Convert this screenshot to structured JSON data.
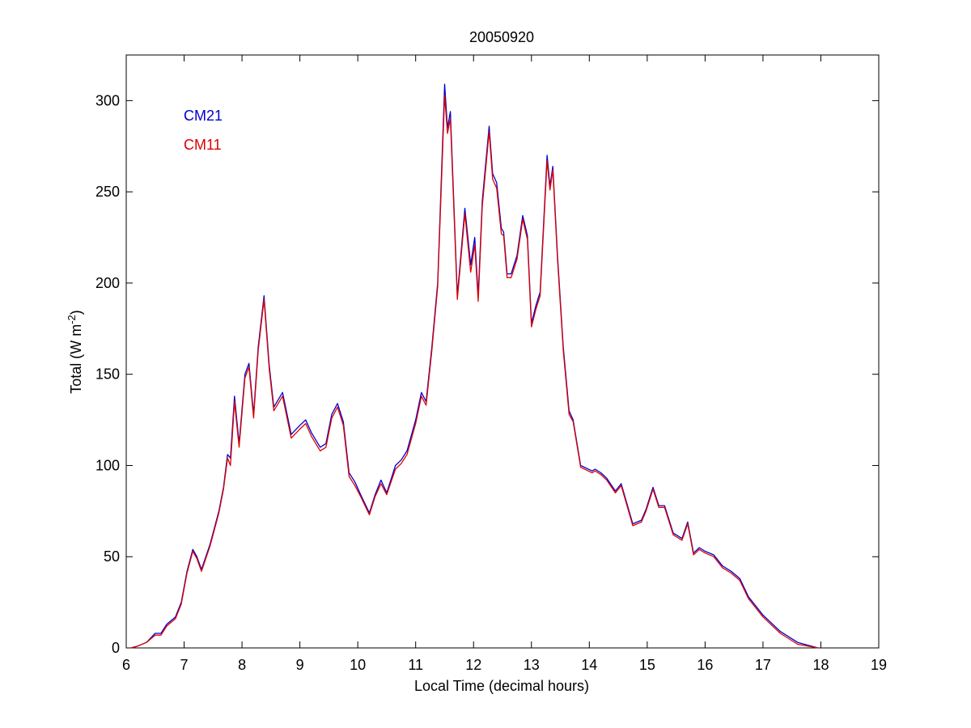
{
  "chart_data": {
    "type": "line",
    "title": "20050920",
    "xlabel": "Local Time (decimal hours)",
    "ylabel": "Total (W m",
    "ylabel_unit_sup": "-2",
    "ylabel_close": ")",
    "xlim": [
      6,
      19
    ],
    "ylim": [
      0,
      325
    ],
    "xticks": [
      6,
      7,
      8,
      9,
      10,
      11,
      12,
      13,
      14,
      15,
      16,
      17,
      18,
      19
    ],
    "yticks": [
      0,
      50,
      100,
      150,
      200,
      250,
      300
    ],
    "grid": false,
    "legend_position": "top-left",
    "series": [
      {
        "name": "CM21",
        "color": "#0000cc",
        "points": [
          [
            6.08,
            0
          ],
          [
            6.2,
            1
          ],
          [
            6.35,
            3
          ],
          [
            6.5,
            8
          ],
          [
            6.6,
            8
          ],
          [
            6.7,
            13
          ],
          [
            6.85,
            17
          ],
          [
            6.95,
            25
          ],
          [
            7.05,
            42
          ],
          [
            7.15,
            54
          ],
          [
            7.22,
            50
          ],
          [
            7.3,
            43
          ],
          [
            7.45,
            57
          ],
          [
            7.6,
            75
          ],
          [
            7.68,
            88
          ],
          [
            7.75,
            106
          ],
          [
            7.8,
            104
          ],
          [
            7.87,
            138
          ],
          [
            7.95,
            112
          ],
          [
            8.05,
            150
          ],
          [
            8.12,
            156
          ],
          [
            8.2,
            128
          ],
          [
            8.28,
            165
          ],
          [
            8.38,
            193
          ],
          [
            8.47,
            155
          ],
          [
            8.55,
            132
          ],
          [
            8.7,
            140
          ],
          [
            8.85,
            117
          ],
          [
            9.0,
            122
          ],
          [
            9.1,
            125
          ],
          [
            9.2,
            118
          ],
          [
            9.35,
            110
          ],
          [
            9.45,
            112
          ],
          [
            9.55,
            128
          ],
          [
            9.65,
            134
          ],
          [
            9.75,
            124
          ],
          [
            9.85,
            96
          ],
          [
            9.95,
            91
          ],
          [
            10.05,
            84
          ],
          [
            10.2,
            74
          ],
          [
            10.3,
            84
          ],
          [
            10.4,
            92
          ],
          [
            10.5,
            85
          ],
          [
            10.65,
            100
          ],
          [
            10.75,
            103
          ],
          [
            10.85,
            108
          ],
          [
            11.0,
            125
          ],
          [
            11.1,
            140
          ],
          [
            11.18,
            135
          ],
          [
            11.28,
            165
          ],
          [
            11.38,
            200
          ],
          [
            11.5,
            309
          ],
          [
            11.55,
            285
          ],
          [
            11.6,
            294
          ],
          [
            11.72,
            193
          ],
          [
            11.85,
            241
          ],
          [
            11.95,
            210
          ],
          [
            12.02,
            225
          ],
          [
            12.08,
            193
          ],
          [
            12.15,
            245
          ],
          [
            12.27,
            286
          ],
          [
            12.33,
            260
          ],
          [
            12.4,
            255
          ],
          [
            12.48,
            230
          ],
          [
            12.52,
            228
          ],
          [
            12.58,
            205
          ],
          [
            12.65,
            205
          ],
          [
            12.75,
            215
          ],
          [
            12.85,
            237
          ],
          [
            12.93,
            226
          ],
          [
            13.0,
            178
          ],
          [
            13.08,
            188
          ],
          [
            13.15,
            195
          ],
          [
            13.27,
            270
          ],
          [
            13.32,
            253
          ],
          [
            13.37,
            264
          ],
          [
            13.45,
            215
          ],
          [
            13.55,
            165
          ],
          [
            13.65,
            130
          ],
          [
            13.72,
            125
          ],
          [
            13.85,
            100
          ],
          [
            14.05,
            97
          ],
          [
            14.1,
            98
          ],
          [
            14.2,
            96
          ],
          [
            14.3,
            93
          ],
          [
            14.45,
            86
          ],
          [
            14.55,
            90
          ],
          [
            14.75,
            68
          ],
          [
            14.9,
            70
          ],
          [
            14.98,
            76
          ],
          [
            15.1,
            88
          ],
          [
            15.2,
            78
          ],
          [
            15.3,
            78
          ],
          [
            15.45,
            63
          ],
          [
            15.6,
            60
          ],
          [
            15.7,
            69
          ],
          [
            15.8,
            52
          ],
          [
            15.9,
            55
          ],
          [
            16.0,
            53
          ],
          [
            16.15,
            51
          ],
          [
            16.3,
            45
          ],
          [
            16.45,
            42
          ],
          [
            16.6,
            38
          ],
          [
            16.75,
            28
          ],
          [
            17.0,
            18
          ],
          [
            17.3,
            9
          ],
          [
            17.6,
            3
          ],
          [
            17.95,
            0
          ]
        ]
      },
      {
        "name": "CM11",
        "color": "#dd0000",
        "points": [
          [
            6.08,
            0
          ],
          [
            6.2,
            1
          ],
          [
            6.35,
            3
          ],
          [
            6.5,
            7
          ],
          [
            6.6,
            7
          ],
          [
            6.7,
            12
          ],
          [
            6.85,
            16
          ],
          [
            6.95,
            24
          ],
          [
            7.05,
            41
          ],
          [
            7.15,
            53
          ],
          [
            7.22,
            49
          ],
          [
            7.3,
            42
          ],
          [
            7.45,
            56
          ],
          [
            7.6,
            74
          ],
          [
            7.68,
            87
          ],
          [
            7.75,
            104
          ],
          [
            7.8,
            100
          ],
          [
            7.87,
            135
          ],
          [
            7.95,
            110
          ],
          [
            8.05,
            148
          ],
          [
            8.12,
            154
          ],
          [
            8.2,
            126
          ],
          [
            8.28,
            163
          ],
          [
            8.38,
            191
          ],
          [
            8.47,
            153
          ],
          [
            8.55,
            130
          ],
          [
            8.7,
            138
          ],
          [
            8.85,
            115
          ],
          [
            9.0,
            120
          ],
          [
            9.1,
            123
          ],
          [
            9.2,
            116
          ],
          [
            9.35,
            108
          ],
          [
            9.45,
            110
          ],
          [
            9.55,
            126
          ],
          [
            9.65,
            132
          ],
          [
            9.75,
            122
          ],
          [
            9.85,
            94
          ],
          [
            9.95,
            89
          ],
          [
            10.05,
            83
          ],
          [
            10.2,
            73
          ],
          [
            10.3,
            83
          ],
          [
            10.4,
            90
          ],
          [
            10.5,
            84
          ],
          [
            10.65,
            98
          ],
          [
            10.75,
            101
          ],
          [
            10.85,
            106
          ],
          [
            11.0,
            123
          ],
          [
            11.1,
            138
          ],
          [
            11.18,
            133
          ],
          [
            11.28,
            163
          ],
          [
            11.38,
            198
          ],
          [
            11.5,
            303
          ],
          [
            11.55,
            282
          ],
          [
            11.6,
            290
          ],
          [
            11.72,
            191
          ],
          [
            11.85,
            238
          ],
          [
            11.95,
            206
          ],
          [
            12.02,
            221
          ],
          [
            12.08,
            190
          ],
          [
            12.15,
            242
          ],
          [
            12.27,
            283
          ],
          [
            12.33,
            257
          ],
          [
            12.4,
            252
          ],
          [
            12.48,
            227
          ],
          [
            12.52,
            226
          ],
          [
            12.58,
            203
          ],
          [
            12.65,
            203
          ],
          [
            12.75,
            213
          ],
          [
            12.85,
            235
          ],
          [
            12.93,
            224
          ],
          [
            13.0,
            176
          ],
          [
            13.08,
            186
          ],
          [
            13.15,
            193
          ],
          [
            13.27,
            267
          ],
          [
            13.32,
            251
          ],
          [
            13.37,
            262
          ],
          [
            13.45,
            213
          ],
          [
            13.55,
            163
          ],
          [
            13.65,
            128
          ],
          [
            13.72,
            124
          ],
          [
            13.85,
            99
          ],
          [
            14.05,
            96
          ],
          [
            14.1,
            97
          ],
          [
            14.2,
            95
          ],
          [
            14.3,
            92
          ],
          [
            14.45,
            85
          ],
          [
            14.55,
            89
          ],
          [
            14.75,
            67
          ],
          [
            14.9,
            69
          ],
          [
            14.98,
            75
          ],
          [
            15.1,
            87
          ],
          [
            15.2,
            77
          ],
          [
            15.3,
            77
          ],
          [
            15.45,
            62
          ],
          [
            15.6,
            59
          ],
          [
            15.7,
            68
          ],
          [
            15.8,
            51
          ],
          [
            15.9,
            54
          ],
          [
            16.0,
            52
          ],
          [
            16.15,
            50
          ],
          [
            16.3,
            44
          ],
          [
            16.45,
            41
          ],
          [
            16.6,
            37
          ],
          [
            16.75,
            27
          ],
          [
            17.0,
            17
          ],
          [
            17.3,
            8
          ],
          [
            17.6,
            2
          ],
          [
            17.95,
            0
          ]
        ]
      }
    ]
  }
}
